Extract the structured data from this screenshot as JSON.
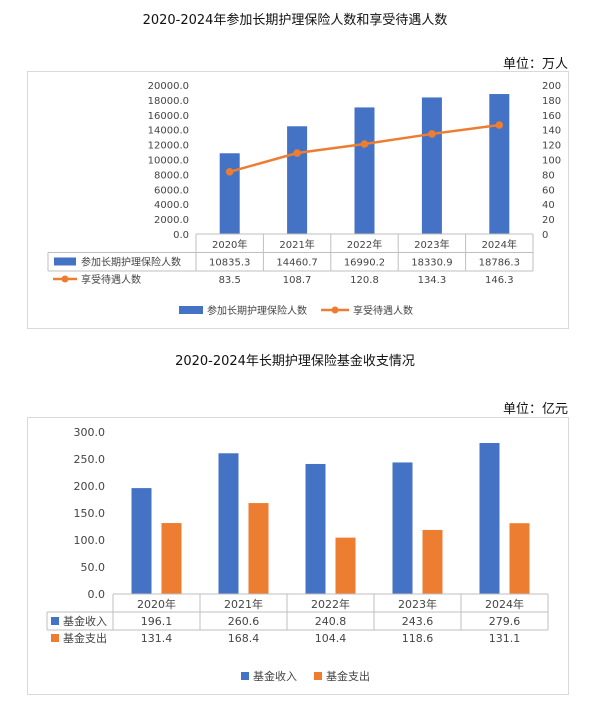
{
  "chart1": {
    "title": "2020-2024年参加长期护理保险人数和享受待遇人数",
    "unit": "单位：万人"
  },
  "chart2": {
    "title": "2020-2024年长期护理保险基金收支情况",
    "unit": "单位：亿元"
  },
  "chart_data": [
    {
      "type": "bar",
      "categories": [
        "2020年",
        "2021年",
        "2022年",
        "2023年",
        "2024年"
      ],
      "series": [
        {
          "name": "参加长期护理保险人数",
          "type": "bar",
          "axis": "left",
          "color": "#4472C4",
          "values": [
            10835.3,
            14460.7,
            16990.2,
            18330.9,
            18786.3
          ],
          "labels": [
            "10835.3",
            "14460.7",
            "16990.2",
            "18330.9",
            "18786.3"
          ]
        },
        {
          "name": "享受待遇人数",
          "type": "line",
          "axis": "right",
          "color": "#ED7D31",
          "values": [
            83.5,
            108.7,
            120.8,
            134.3,
            146.3
          ],
          "labels": [
            "83.5",
            "108.7",
            "120.8",
            "134.3",
            "146.3"
          ]
        }
      ],
      "ylim": [
        0,
        20000
      ],
      "yticks": [
        "0.0",
        "2000.0",
        "4000.0",
        "6000.0",
        "8000.0",
        "10000.0",
        "12000.0",
        "14000.0",
        "16000.0",
        "18000.0",
        "20000.0"
      ],
      "y2lim": [
        0,
        200
      ],
      "y2ticks": [
        "0",
        "20",
        "40",
        "60",
        "80",
        "100",
        "120",
        "140",
        "160",
        "180",
        "200"
      ],
      "data_table": true,
      "legend": "bottom",
      "grid": false
    },
    {
      "type": "bar",
      "categories": [
        "2020年",
        "2021年",
        "2022年",
        "2023年",
        "2024年"
      ],
      "series": [
        {
          "name": "基金收入",
          "color": "#4472C4",
          "values": [
            196.1,
            260.6,
            240.8,
            243.6,
            279.6
          ],
          "labels": [
            "196.1",
            "260.6",
            "240.8",
            "243.6",
            "279.6"
          ]
        },
        {
          "name": "基金支出",
          "color": "#ED7D31",
          "values": [
            131.4,
            168.4,
            104.4,
            118.6,
            131.1
          ],
          "labels": [
            "131.4",
            "168.4",
            "104.4",
            "118.6",
            "131.1"
          ]
        }
      ],
      "ylim": [
        0,
        300
      ],
      "yticks": [
        "0.0",
        "50.0",
        "100.0",
        "150.0",
        "200.0",
        "250.0",
        "300.0"
      ],
      "data_table": true,
      "legend": "bottom",
      "grid": false
    }
  ]
}
